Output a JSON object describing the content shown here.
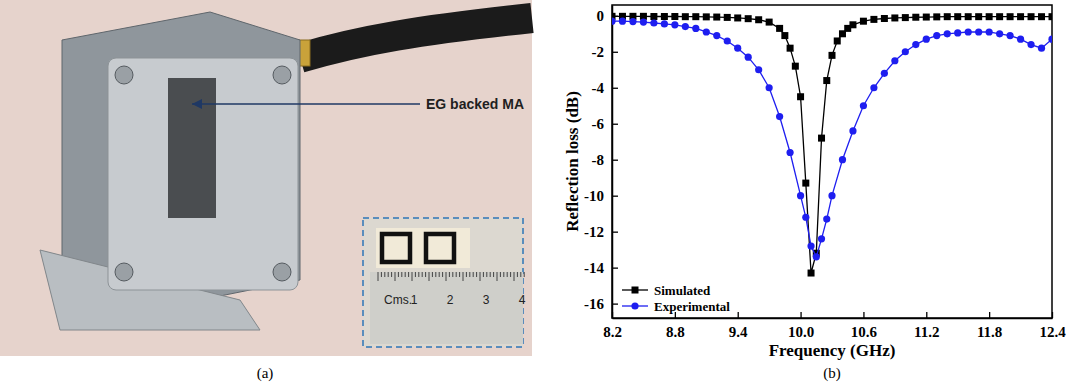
{
  "figure": {
    "panel_labels": [
      "(a)",
      "(b)"
    ]
  },
  "photo": {
    "annotation": "EG backed MA",
    "ruler_unit": "Cms.",
    "ruler_numbers": [
      1,
      2,
      3,
      4
    ]
  },
  "chart_data": {
    "type": "line",
    "x_label": "Frequency (GHz)",
    "y_label": "Reflection loss (dB)",
    "xlim": [
      8.2,
      12.4
    ],
    "xticks": [
      8.2,
      8.8,
      9.4,
      {
        "value": 10,
        "label": "10.0"
      },
      10.6,
      11.2,
      11.8,
      12.4
    ],
    "ylim": [
      -16.8,
      0.6
    ],
    "yticks": [
      0,
      -2,
      -4,
      -6,
      -8,
      -10,
      -12,
      -14,
      -16
    ],
    "grid": false,
    "legend": "lower left",
    "series": [
      {
        "name": "Simulated",
        "color": "#000000",
        "marker": "square",
        "line_style": "solid",
        "x": [
          8.2,
          8.3,
          8.4,
          8.5,
          8.6,
          8.7,
          8.8,
          8.9,
          9.0,
          9.1,
          9.2,
          9.3,
          9.4,
          9.5,
          9.6,
          9.7,
          9.8,
          9.85,
          9.9,
          9.95,
          10.0,
          10.05,
          10.1,
          10.15,
          10.2,
          10.25,
          10.3,
          10.35,
          10.4,
          10.45,
          10.5,
          10.6,
          10.7,
          10.8,
          10.9,
          11.0,
          11.1,
          11.2,
          11.3,
          11.4,
          11.5,
          11.6,
          11.7,
          11.8,
          11.9,
          12.0,
          12.1,
          12.2,
          12.3,
          12.4
        ],
        "values": [
          -0.03,
          -0.03,
          -0.03,
          -0.03,
          -0.04,
          -0.04,
          -0.04,
          -0.05,
          -0.05,
          -0.06,
          -0.07,
          -0.09,
          -0.12,
          -0.16,
          -0.22,
          -0.35,
          -0.7,
          -1.1,
          -1.8,
          -2.8,
          -4.5,
          -9.3,
          -14.3,
          -13.2,
          -6.8,
          -3.6,
          -2.2,
          -1.4,
          -1.0,
          -0.7,
          -0.5,
          -0.3,
          -0.2,
          -0.15,
          -0.12,
          -0.1,
          -0.08,
          -0.07,
          -0.06,
          -0.05,
          -0.05,
          -0.05,
          -0.05,
          -0.05,
          -0.05,
          -0.05,
          -0.05,
          -0.05,
          -0.05,
          -0.05
        ]
      },
      {
        "name": "Experimental",
        "color": "#1e1ef0",
        "marker": "circle",
        "line_style": "solid",
        "x": [
          8.2,
          8.3,
          8.4,
          8.5,
          8.6,
          8.7,
          8.8,
          8.9,
          9.0,
          9.1,
          9.2,
          9.3,
          9.4,
          9.5,
          9.6,
          9.7,
          9.8,
          9.9,
          10.0,
          10.05,
          10.1,
          10.15,
          10.2,
          10.25,
          10.3,
          10.4,
          10.5,
          10.6,
          10.7,
          10.8,
          10.9,
          11.0,
          11.1,
          11.2,
          11.3,
          11.4,
          11.5,
          11.6,
          11.7,
          11.8,
          11.9,
          12.0,
          12.1,
          12.2,
          12.3,
          12.4
        ],
        "values": [
          -0.3,
          -0.3,
          -0.32,
          -0.35,
          -0.4,
          -0.45,
          -0.5,
          -0.6,
          -0.7,
          -0.9,
          -1.1,
          -1.4,
          -1.8,
          -2.3,
          -3.0,
          -4.0,
          -5.6,
          -7.6,
          -10.0,
          -11.2,
          -12.8,
          -13.4,
          -12.4,
          -11.3,
          -10.0,
          -8.0,
          -6.4,
          -5.0,
          -4.0,
          -3.2,
          -2.5,
          -2.0,
          -1.6,
          -1.3,
          -1.1,
          -1.0,
          -0.95,
          -0.9,
          -0.9,
          -0.9,
          -1.0,
          -1.1,
          -1.3,
          -1.6,
          -1.8,
          -1.3
        ]
      }
    ]
  }
}
